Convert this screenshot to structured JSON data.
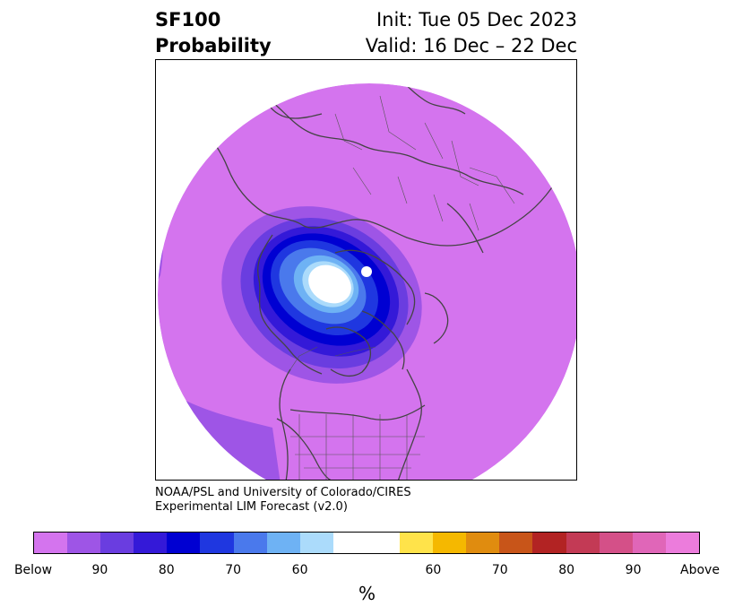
{
  "title": {
    "variable": "SF100",
    "product": "Probability",
    "init": "Init: Tue 05 Dec 2023",
    "valid": "Valid: 16 Dec – 22 Dec"
  },
  "credit": {
    "line1": "NOAA/PSL and University of Colorado/CIRES",
    "line2": "Experimental LIM Forecast (v2.0)"
  },
  "colorbar": {
    "unit": "%",
    "below_colors": [
      "#d474ee",
      "#9e55e6",
      "#6a3de0",
      "#3419d8",
      "#0000d2",
      "#1f37e0",
      "#4a79ec",
      "#6eb2f4",
      "#abdbfb"
    ],
    "neutral_color": "#ffffff",
    "above_colors": [
      "#ffe34a",
      "#f5b800",
      "#e08c0f",
      "#c85519",
      "#b22323",
      "#c33a55",
      "#d45088",
      "#e066b8",
      "#ec7cdc"
    ],
    "tick_labels": [
      "Below",
      "90",
      "80",
      "70",
      "60",
      "60",
      "70",
      "80",
      "90",
      "Above"
    ]
  },
  "map": {
    "projection": "north-polar-stereographic",
    "field_colors": {
      "below_40": "#d474ee",
      "b50": "#9e55e6",
      "b60": "#6a3de0",
      "b70": "#3419d8",
      "b80": "#0000d2",
      "b85": "#1f37e0",
      "b90": "#4a79ec",
      "b95": "#6eb2f4",
      "b98": "#abdbfb",
      "pole": "#ffffff"
    },
    "coastline_color": "#444444"
  }
}
